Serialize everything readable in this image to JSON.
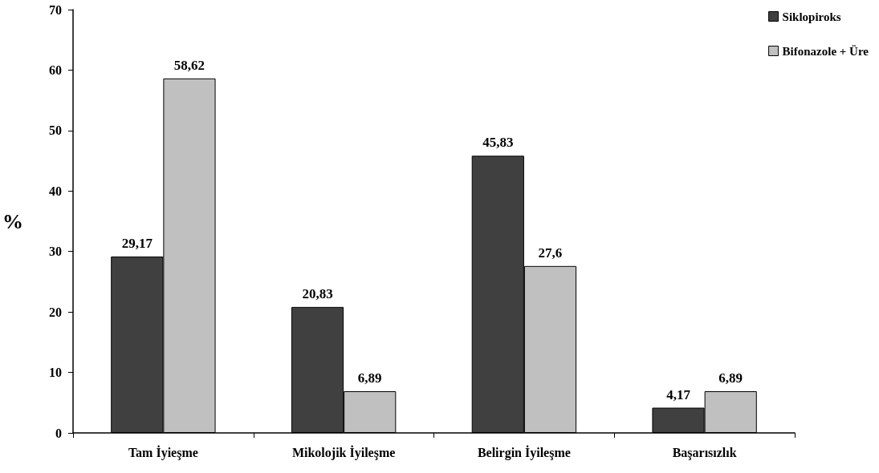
{
  "chart_data": {
    "type": "bar",
    "ylabel": "%",
    "categories": [
      "Tam İyieşme",
      "Mikolojik İyileşme",
      "Belirgin İyileşme",
      "Başarısızlık"
    ],
    "series": [
      {
        "name": "Siklopiroks",
        "color": "#404040",
        "values": [
          29.17,
          20.83,
          45.83,
          4.17
        ],
        "value_labels": [
          "29,17",
          "20,83",
          "45,83",
          "4,17"
        ]
      },
      {
        "name": "Bifonazole + Üre",
        "color": "#c0c0c0",
        "values": [
          58.62,
          6.89,
          27.6,
          6.89
        ],
        "value_labels": [
          "58,62",
          "6,89",
          "27,6",
          "6,89"
        ]
      }
    ],
    "ylim": [
      0,
      70
    ],
    "yticks": [
      0,
      10,
      20,
      30,
      40,
      50,
      60,
      70
    ],
    "grid": false,
    "legend": "top right"
  }
}
